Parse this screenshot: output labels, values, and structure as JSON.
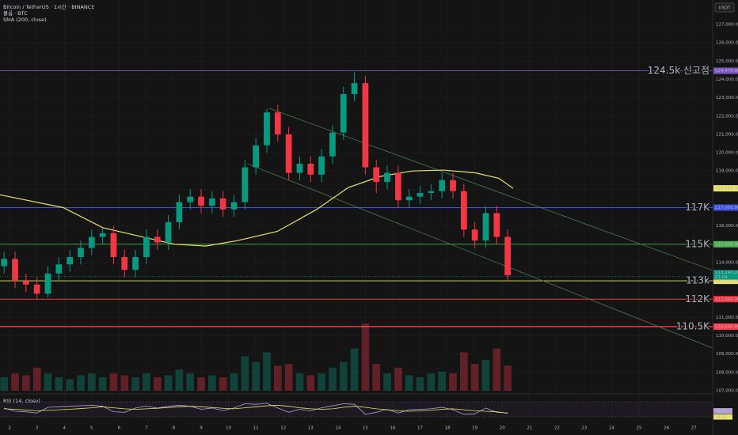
{
  "header": {
    "title": "Bitcoin / TetherUS · 1시간 · BINANCE",
    "volume": "볼륨 · BTC",
    "currency": "USDT"
  },
  "chart_data": {
    "type": "candlestick",
    "up_color": "#089981",
    "down_color": "#f23645",
    "x": [
      1.8,
      2.2,
      2.6,
      3.0,
      3.4,
      3.8,
      4.2,
      4.6,
      5.0,
      5.4,
      5.8,
      6.2,
      6.6,
      7.0,
      7.4,
      7.8,
      8.2,
      8.6,
      9.0,
      9.4,
      9.8,
      10.2,
      10.6,
      11.0,
      11.4,
      11.8,
      12.2,
      12.6,
      13.0,
      13.4,
      13.8,
      14.2,
      14.6,
      15.0,
      15.4,
      15.8,
      16.2,
      16.6,
      17.0,
      17.4,
      17.8,
      18.2,
      18.6,
      19.0,
      19.4,
      19.8,
      20.2
    ],
    "open": [
      113800,
      114200,
      113000,
      112800,
      112300,
      113400,
      113900,
      114300,
      114800,
      115400,
      115600,
      114300,
      113600,
      114300,
      115400,
      115100,
      116200,
      117300,
      117600,
      117100,
      117500,
      116900,
      117300,
      119200,
      120400,
      122200,
      121000,
      118900,
      119400,
      118800,
      119800,
      121100,
      123200,
      123800,
      119200,
      118400,
      118900,
      117400,
      117600,
      117800,
      117900,
      118500,
      117900,
      115800,
      115200,
      116700,
      115400
    ],
    "high": [
      114600,
      114600,
      113400,
      113200,
      113800,
      114300,
      114700,
      115200,
      115800,
      115900,
      116000,
      114700,
      114700,
      115800,
      115800,
      116600,
      117700,
      118000,
      118000,
      117900,
      117900,
      117700,
      119600,
      120800,
      122400,
      122600,
      121400,
      119800,
      119800,
      120200,
      121500,
      123600,
      124400,
      124200,
      119600,
      119300,
      119300,
      118000,
      118200,
      118300,
      118900,
      118900,
      118300,
      116200,
      117100,
      117100,
      115800
    ],
    "low": [
      113400,
      112600,
      112400,
      112000,
      112100,
      113000,
      113500,
      113900,
      114400,
      115000,
      113900,
      113200,
      113200,
      113900,
      114700,
      114700,
      115800,
      116900,
      116700,
      116700,
      116500,
      116500,
      116900,
      118800,
      120000,
      120600,
      118500,
      118500,
      118400,
      118400,
      119400,
      120700,
      122800,
      118800,
      117800,
      118000,
      117000,
      117000,
      117200,
      117400,
      117500,
      117500,
      115400,
      114800,
      114800,
      115000,
      113000
    ],
    "close": [
      114200,
      113000,
      112800,
      112300,
      113400,
      113900,
      114300,
      114800,
      115400,
      115600,
      114300,
      113600,
      114300,
      115400,
      115100,
      116200,
      117300,
      117600,
      117100,
      117500,
      116900,
      117300,
      119200,
      120400,
      122200,
      121000,
      118900,
      119400,
      118800,
      119800,
      121100,
      123200,
      123800,
      119200,
      118400,
      118900,
      117400,
      117600,
      117800,
      117900,
      118500,
      117900,
      115800,
      115200,
      116700,
      115400,
      113300
    ],
    "volume": [
      700,
      900,
      800,
      1200,
      900,
      700,
      600,
      800,
      900,
      700,
      900,
      800,
      700,
      900,
      700,
      800,
      1100,
      900,
      700,
      800,
      700,
      900,
      1800,
      1500,
      2000,
      1300,
      1400,
      900,
      800,
      900,
      1200,
      1500,
      2200,
      3500,
      1400,
      900,
      1200,
      800,
      700,
      900,
      1000,
      900,
      2000,
      1400,
      1600,
      2200,
      1300
    ],
    "xlim": [
      1.65,
      27.69
    ],
    "xticks": [
      2,
      3,
      4,
      5,
      6,
      7,
      8,
      9,
      10,
      11,
      12,
      13,
      14,
      15,
      16,
      17,
      18,
      19,
      20,
      21,
      22,
      23,
      24,
      25,
      26,
      27
    ],
    "ylim": [
      107000,
      127000
    ],
    "yticks": [
      {
        "value": 107000,
        "label": "107,000.00"
      },
      {
        "value": 108000,
        "label": "108,000.00"
      },
      {
        "value": 109000,
        "label": "109,000.00"
      },
      {
        "value": 110000,
        "label": "110,000.00"
      },
      {
        "value": 111000,
        "label": "111,000.00"
      },
      {
        "value": 112000,
        "label": "112,000.00"
      },
      {
        "value": 113000,
        "label": "113,000.00"
      },
      {
        "value": 114000,
        "label": "114,000.00"
      },
      {
        "value": 115000,
        "label": "115,000.00"
      },
      {
        "value": 116000,
        "label": "116,000.00"
      },
      {
        "value": 117000,
        "label": "117,000.00"
      },
      {
        "value": 118000,
        "label": "118,000.00"
      },
      {
        "value": 119000,
        "label": "119,000.00"
      },
      {
        "value": 120000,
        "label": "120,000.00"
      },
      {
        "value": 121000,
        "label": "121,000.00"
      },
      {
        "value": 122000,
        "label": "122,000.00"
      },
      {
        "value": 123000,
        "label": "123,000.00"
      },
      {
        "value": 124000,
        "label": "124,000.00"
      },
      {
        "value": 125000,
        "label": "125,000.00"
      },
      {
        "value": 126000,
        "label": "126,000.00"
      },
      {
        "value": 127000,
        "label": "127,000.00"
      }
    ],
    "grid": true,
    "sma": {
      "name": "SMA (200, close)",
      "color": "#e8e36a",
      "x": [
        1.65,
        3.96,
        5.41,
        6.86,
        8.02,
        9.17,
        10.33,
        11.78,
        13.22,
        14.38,
        15.54,
        16.7,
        17.85,
        19.01,
        19.88,
        20.4
      ],
      "values": [
        117700,
        117000,
        115900,
        115400,
        115000,
        114900,
        115200,
        115700,
        116900,
        118100,
        118700,
        119000,
        119050,
        118900,
        118600,
        118054.1
      ],
      "last_label": "118,054.10"
    },
    "last_price": {
      "value": 113240.28,
      "label": "113,240.28",
      "countdown": "01:04",
      "color": "#089981"
    },
    "levels": [
      {
        "value": 124474,
        "label": "124.5k 신고점",
        "price_label": "124,474.00",
        "color": "#7e57c2"
      },
      {
        "value": 117000,
        "label": "117K",
        "price_label": "117,000.00",
        "color": "#3f51e0"
      },
      {
        "value": 115000,
        "label": "115K",
        "price_label": "115,000.00",
        "color": "#4caf50"
      },
      {
        "value": 113000,
        "label": "113k",
        "price_label": "113,000.00",
        "color": "#e8e36a"
      },
      {
        "value": 112000,
        "label": "112K",
        "price_label": "112,000.00",
        "color": "#f23645"
      },
      {
        "value": 110500,
        "label": "110.5K",
        "price_label": "110,500.00",
        "color": "#ff3b4e"
      }
    ],
    "trendlines": {
      "color": "#4f7a4f",
      "lines": [
        {
          "x": [
            11.49,
            27.69
          ],
          "values": [
            122420,
            113570
          ]
        },
        {
          "x": [
            10.68,
            27.69
          ],
          "values": [
            119400,
            109330
          ]
        }
      ]
    },
    "rsi": {
      "name": "RSI (14, close)",
      "ylim": [
        20,
        80
      ],
      "levels": [
        80,
        20
      ],
      "color": "#b39ddb",
      "ma_color": "#e8e36a",
      "values": [
        55,
        42,
        40,
        35,
        58,
        60,
        62,
        64,
        66,
        62,
        40,
        38,
        55,
        63,
        55,
        62,
        66,
        62,
        50,
        55,
        45,
        55,
        72,
        70,
        74,
        55,
        38,
        50,
        44,
        56,
        64,
        72,
        70,
        30,
        38,
        50,
        35,
        48,
        50,
        52,
        58,
        48,
        30,
        32,
        55,
        38,
        35.64
      ],
      "ma_values": [
        52,
        50,
        47,
        44,
        46,
        48,
        50,
        53,
        56,
        60,
        56,
        52,
        50,
        52,
        54,
        57,
        60,
        62,
        60,
        57,
        54,
        52,
        56,
        60,
        64,
        66,
        62,
        56,
        52,
        50,
        52,
        58,
        62,
        58,
        52,
        48,
        44,
        42,
        44,
        46,
        50,
        52,
        48,
        44,
        42,
        40,
        34.02
      ],
      "last_label": "35.64",
      "ma_label": "34.02"
    }
  }
}
